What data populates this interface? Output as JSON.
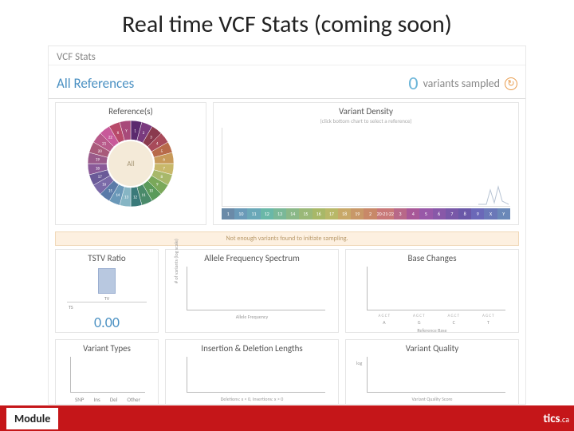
{
  "slide": {
    "title": "Real time VCF Stats (coming soon)"
  },
  "header": {
    "title": "VCF Stats"
  },
  "allref": {
    "label": "All References",
    "count": "0",
    "sampled_label": "variants sampled"
  },
  "refs_panel": {
    "title": "Reference(s)",
    "donut_center": "All",
    "segments": [
      {
        "label": "1",
        "color": "#5b2a6e"
      },
      {
        "label": "2",
        "color": "#7a3a7e"
      },
      {
        "label": "3",
        "color": "#8a3a4e"
      },
      {
        "label": "4",
        "color": "#a84a5a"
      },
      {
        "label": "5",
        "color": "#b86a4a"
      },
      {
        "label": "6",
        "color": "#c89a5a"
      },
      {
        "label": "7",
        "color": "#c8b86a"
      },
      {
        "label": "8",
        "color": "#a8b86a"
      },
      {
        "label": "9",
        "color": "#7aa85a"
      },
      {
        "label": "10",
        "color": "#5a9a5a"
      },
      {
        "label": "11",
        "color": "#4a8a6a"
      },
      {
        "label": "12",
        "color": "#3a7a7a"
      },
      {
        "label": "13",
        "color": "#86b5c4"
      },
      {
        "label": "14",
        "color": "#6a98b8"
      },
      {
        "label": "15",
        "color": "#5a7aa8"
      },
      {
        "label": "16",
        "color": "#7a6aa8"
      },
      {
        "label": "17",
        "color": "#6a5a98"
      },
      {
        "label": "18",
        "color": "#8a5a98"
      },
      {
        "label": "19",
        "color": "#9a5a8a"
      },
      {
        "label": "20",
        "color": "#a85a7a"
      },
      {
        "label": "21",
        "color": "#b85a8a"
      },
      {
        "label": "22",
        "color": "#c85a9a"
      },
      {
        "label": "X",
        "color": "#b84a6a"
      },
      {
        "label": "Y",
        "color": "#a84a7a"
      }
    ]
  },
  "density_panel": {
    "title": "Variant Density",
    "subtitle": "(click bottom chart to select a reference)",
    "chrom_colors": [
      "#6a8aa8",
      "#6a9ab8",
      "#6aa8b8",
      "#6ab8a8",
      "#7ab898",
      "#8ab888",
      "#9ab878",
      "#a8b868",
      "#b8b868",
      "#c8a868",
      "#c89868",
      "#c88868",
      "#c87878",
      "#b86888",
      "#a85898",
      "#9858a8",
      "#8858a8",
      "#7858a8",
      "#6a58a8",
      "#6a68b8",
      "#6a78b8",
      "#6a88b8",
      "#8a8a8a",
      "#9a9a9a"
    ],
    "chrom_labels": [
      "1",
      "10",
      "11",
      "12",
      "13",
      "14",
      "15",
      "16",
      "17",
      "18",
      "19",
      "2",
      "20·21·22",
      "3",
      "4",
      "5",
      "6",
      "7",
      "8",
      "9",
      "X",
      "Y"
    ]
  },
  "warning": "Not enough variants found to initiate sampling.",
  "tstv": {
    "title": "TSTV Ratio",
    "ts_label": "TS",
    "tv_label": "TV",
    "value": "0.00",
    "bar_color": "#b8c8e0"
  },
  "afs": {
    "title": "Allele Frequency Spectrum",
    "ylabel": "# of variants (log scale)",
    "xlabel": "Allele Frequency"
  },
  "bc": {
    "title": "Base Changes",
    "xlabel": "Reference Base",
    "xticks": [
      "A",
      "G",
      "C",
      "T"
    ],
    "sup": [
      "A G C T",
      "A G C T",
      "A G C T",
      "A G C T"
    ]
  },
  "vt": {
    "title": "Variant Types",
    "xticks": [
      "SNP",
      "Ins",
      "Del",
      "Other"
    ]
  },
  "idl": {
    "title": "Insertion & Deletion Lengths",
    "xlabel": "Deletions: x < 0, Insertions: x > 0"
  },
  "vq": {
    "title": "Variant Quality",
    "xlabel": "Variant Quality Score",
    "ytick": "log"
  },
  "footer": {
    "module": "Module",
    "suffix": "tics",
    "tld": ".ca"
  }
}
